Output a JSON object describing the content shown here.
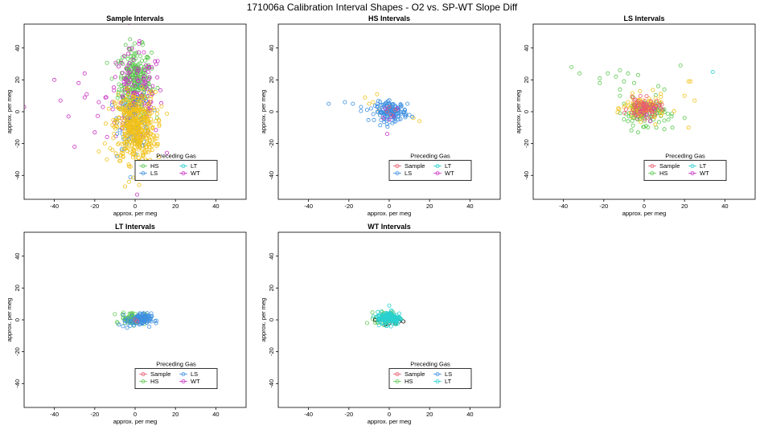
{
  "figure": {
    "title": "171006a   Calibration Interval Shapes - O2 vs. SP-WT Slope Diff"
  },
  "colors": {
    "Sample": "#e8596e",
    "HS": "#5ec952",
    "LS": "#3d8fe0",
    "LT": "#2ad0d0",
    "WT": "#c934c4",
    "SampleYellow": "#f2c11a",
    "Black": "#000000"
  },
  "chart_data": [
    {
      "type": "scatter",
      "title": "Sample Intervals",
      "xlabel": "approx. per meg",
      "ylabel": "approx. per meg",
      "xlim": [
        -55,
        55
      ],
      "ylim": [
        -55,
        55
      ],
      "xticks": [
        -40,
        -20,
        0,
        20,
        40
      ],
      "yticks": [
        -40,
        -20,
        0,
        20,
        40
      ],
      "legend": {
        "title": "Preceding Gas",
        "entries": [
          {
            "name": "HS",
            "color": "HS"
          },
          {
            "name": "LT",
            "color": "LT"
          },
          {
            "name": "LS",
            "color": "LS"
          },
          {
            "name": "WT",
            "color": "WT"
          }
        ],
        "placement": "bottom-right"
      },
      "series": [
        {
          "name": "HS",
          "color": "HS",
          "cluster": {
            "cx": 0,
            "cy": 18,
            "sx": 4,
            "sy": 11,
            "n": 300
          }
        },
        {
          "name": "WT",
          "color": "WT",
          "cluster": {
            "cx": 0,
            "cy": 10,
            "sx": 7,
            "sy": 14,
            "n": 140
          }
        },
        {
          "name": "WT",
          "color": "WT",
          "points": [
            [
              -40,
              20
            ],
            [
              -37,
              7
            ],
            [
              -33,
              -3
            ],
            [
              -28,
              18
            ],
            [
              -25,
              24
            ],
            [
              -25,
              9
            ],
            [
              -24,
              11
            ],
            [
              -30,
              -22
            ],
            [
              -55,
              3
            ],
            [
              -20,
              -13
            ],
            [
              -16,
              3
            ],
            [
              -18,
              6
            ],
            [
              1,
              -52
            ]
          ]
        },
        {
          "name": "LS",
          "color": "LS",
          "cluster": {
            "cx": 0,
            "cy": -5,
            "sx": 4,
            "sy": 9,
            "n": 90
          }
        },
        {
          "name": "Sample",
          "color": "SampleYellow",
          "cluster": {
            "cx": 0,
            "cy": -10,
            "sx": 5,
            "sy": 11,
            "n": 450
          }
        },
        {
          "name": "Sample",
          "color": "SampleYellow",
          "points": [
            [
              -5,
              -47
            ],
            [
              -3,
              -44
            ],
            [
              2,
              -46
            ],
            [
              4,
              -41
            ],
            [
              -15,
              -20
            ],
            [
              -18,
              -25
            ],
            [
              -14,
              -30
            ],
            [
              12,
              -8
            ],
            [
              11,
              -15
            ]
          ]
        }
      ]
    },
    {
      "type": "scatter",
      "title": "HS Intervals",
      "xlabel": "approx. per meg",
      "ylabel": "approx. per meg",
      "xlim": [
        -55,
        55
      ],
      "ylim": [
        -55,
        55
      ],
      "xticks": [
        -40,
        -20,
        0,
        20,
        40
      ],
      "yticks": [
        -40,
        -20,
        0,
        20,
        40
      ],
      "legend": {
        "title": "Preceding Gas",
        "entries": [
          {
            "name": "Sample",
            "color": "Sample"
          },
          {
            "name": "LT",
            "color": "LT"
          },
          {
            "name": "LS",
            "color": "LS"
          },
          {
            "name": "WT",
            "color": "WT"
          }
        ],
        "placement": "bottom-right"
      },
      "series": [
        {
          "name": "Sample",
          "color": "SampleYellow",
          "points": [
            [
              -12,
              9
            ],
            [
              -10,
              5
            ],
            [
              -8,
              6
            ],
            [
              -6,
              11
            ],
            [
              15,
              -6
            ],
            [
              12,
              -4
            ],
            [
              -5,
              1
            ]
          ]
        },
        {
          "name": "LS",
          "color": "LS",
          "cluster": {
            "cx": 1,
            "cy": 0,
            "sx": 4,
            "sy": 3,
            "n": 150
          }
        },
        {
          "name": "LS",
          "color": "LS",
          "points": [
            [
              -30,
              5
            ],
            [
              -22,
              6
            ],
            [
              -18,
              5
            ],
            [
              -14,
              3
            ],
            [
              -9,
              2
            ],
            [
              9,
              5
            ],
            [
              10,
              -2
            ]
          ]
        },
        {
          "name": "WT",
          "color": "WT",
          "points": [
            [
              -1,
              -14
            ],
            [
              -3,
              -4
            ],
            [
              2,
              -3
            ],
            [
              4,
              2
            ],
            [
              -2,
              2
            ],
            [
              0,
              -5
            ]
          ]
        },
        {
          "name": "Sample",
          "color": "Sample",
          "points": [
            [
              -1,
              0
            ],
            [
              1,
              -2
            ],
            [
              3,
              1
            ],
            [
              0,
              3
            ]
          ]
        }
      ]
    },
    {
      "type": "scatter",
      "title": "LS Intervals",
      "xlabel": "approx. per meg",
      "ylabel": "approx. per meg",
      "xlim": [
        -55,
        55
      ],
      "ylim": [
        -55,
        55
      ],
      "xticks": [
        -40,
        -20,
        0,
        20,
        40
      ],
      "yticks": [
        -40,
        -20,
        0,
        20,
        40
      ],
      "legend": {
        "title": "Preceding Gas",
        "entries": [
          {
            "name": "Sample",
            "color": "Sample"
          },
          {
            "name": "LT",
            "color": "LT"
          },
          {
            "name": "HS",
            "color": "HS"
          },
          {
            "name": "WT",
            "color": "WT"
          }
        ],
        "placement": "bottom-right"
      },
      "series": [
        {
          "name": "HS",
          "color": "HS",
          "points": [
            [
              -36,
              28
            ],
            [
              -32,
              24
            ],
            [
              -22,
              21
            ],
            [
              -22,
              18
            ],
            [
              -18,
              24
            ],
            [
              -14,
              22
            ],
            [
              -12,
              26
            ],
            [
              -10,
              19
            ],
            [
              -12,
              14
            ],
            [
              -8,
              24
            ],
            [
              -3,
              23
            ],
            [
              -5,
              18
            ],
            [
              7,
              16
            ],
            [
              10,
              14
            ],
            [
              18,
              29
            ],
            [
              -12,
              10
            ],
            [
              -10,
              5
            ],
            [
              12,
              -5
            ],
            [
              10,
              -11
            ],
            [
              -8,
              -6
            ],
            [
              20,
              -4
            ],
            [
              14,
              -10
            ],
            [
              6,
              -10
            ],
            [
              -3,
              -13
            ]
          ]
        },
        {
          "name": "HS",
          "color": "HS",
          "cluster": {
            "cx": 0,
            "cy": 0,
            "sx": 5,
            "sy": 4,
            "n": 120
          }
        },
        {
          "name": "Sample",
          "color": "SampleYellow",
          "cluster": {
            "cx": 0,
            "cy": 2,
            "sx": 5,
            "sy": 4,
            "n": 80
          }
        },
        {
          "name": "Sample",
          "color": "SampleYellow",
          "points": [
            [
              22,
              19
            ],
            [
              23,
              19
            ],
            [
              25,
              7
            ],
            [
              20,
              10
            ],
            [
              -8,
              6
            ],
            [
              -10,
              3
            ],
            [
              -6,
              9
            ],
            [
              22,
              -10
            ]
          ]
        },
        {
          "name": "Sample",
          "color": "Sample",
          "cluster": {
            "cx": 0,
            "cy": 2,
            "sx": 4,
            "sy": 3,
            "n": 70
          }
        },
        {
          "name": "WT",
          "color": "WT",
          "points": [
            [
              1,
              -2
            ],
            [
              3,
              -6
            ],
            [
              -2,
              0
            ],
            [
              5,
              2
            ]
          ]
        },
        {
          "name": "LT",
          "color": "LT",
          "points": [
            [
              34,
              25
            ]
          ]
        }
      ]
    },
    {
      "type": "scatter",
      "title": "LT Intervals",
      "xlabel": "approx. per meg",
      "ylabel": "approx. per meg",
      "xlim": [
        -55,
        55
      ],
      "ylim": [
        -55,
        55
      ],
      "xticks": [
        -40,
        -20,
        0,
        20,
        40
      ],
      "yticks": [
        -40,
        -20,
        0,
        20,
        40
      ],
      "legend": {
        "title": "Preceding Gas",
        "entries": [
          {
            "name": "Sample",
            "color": "Sample"
          },
          {
            "name": "LS",
            "color": "LS"
          },
          {
            "name": "HS",
            "color": "HS"
          },
          {
            "name": "WT",
            "color": "WT"
          }
        ],
        "placement": "bottom-right"
      },
      "series": [
        {
          "name": "HS",
          "color": "HS",
          "cluster": {
            "cx": -1,
            "cy": 1,
            "sx": 3,
            "sy": 2,
            "n": 80
          }
        },
        {
          "name": "LS",
          "color": "LS",
          "cluster": {
            "cx": 2,
            "cy": 0,
            "sx": 3,
            "sy": 2,
            "n": 100
          }
        },
        {
          "name": "LS",
          "color": "LS",
          "points": [
            [
              -8,
              -3
            ],
            [
              -6,
              -4
            ],
            [
              -4,
              -5
            ],
            [
              6,
              2
            ],
            [
              8,
              -1
            ]
          ]
        },
        {
          "name": "Sample",
          "color": "Sample",
          "points": [
            [
              0,
              0
            ],
            [
              1,
              -1
            ]
          ]
        }
      ]
    },
    {
      "type": "scatter",
      "title": "WT Intervals",
      "xlabel": "approx. per meg",
      "ylabel": "approx. per meg",
      "xlim": [
        -55,
        55
      ],
      "ylim": [
        -55,
        55
      ],
      "xticks": [
        -40,
        -20,
        0,
        20,
        40
      ],
      "yticks": [
        -40,
        -20,
        0,
        20,
        40
      ],
      "legend": {
        "title": "Preceding Gas",
        "entries": [
          {
            "name": "Sample",
            "color": "Sample"
          },
          {
            "name": "LS",
            "color": "LS"
          },
          {
            "name": "HS",
            "color": "HS"
          },
          {
            "name": "LT",
            "color": "LT"
          }
        ],
        "placement": "bottom-right"
      },
      "series": [
        {
          "name": "HS",
          "color": "HS",
          "cluster": {
            "cx": -1,
            "cy": 1,
            "sx": 3,
            "sy": 2,
            "n": 60
          }
        },
        {
          "name": "Black",
          "color": "Black",
          "points": [
            [
              -7,
              0
            ],
            [
              -5,
              0
            ],
            [
              -2,
              -3
            ],
            [
              3,
              -2
            ],
            [
              5,
              -1
            ],
            [
              7,
              -1
            ],
            [
              0,
              -2
            ]
          ]
        },
        {
          "name": "LT",
          "color": "LT",
          "cluster": {
            "cx": 0,
            "cy": 1,
            "sx": 3,
            "sy": 2,
            "n": 130
          }
        },
        {
          "name": "LT",
          "color": "LT",
          "points": [
            [
              0,
              9
            ],
            [
              1,
              6
            ],
            [
              -4,
              5
            ],
            [
              5,
              4
            ],
            [
              -6,
              2
            ]
          ]
        }
      ]
    }
  ]
}
